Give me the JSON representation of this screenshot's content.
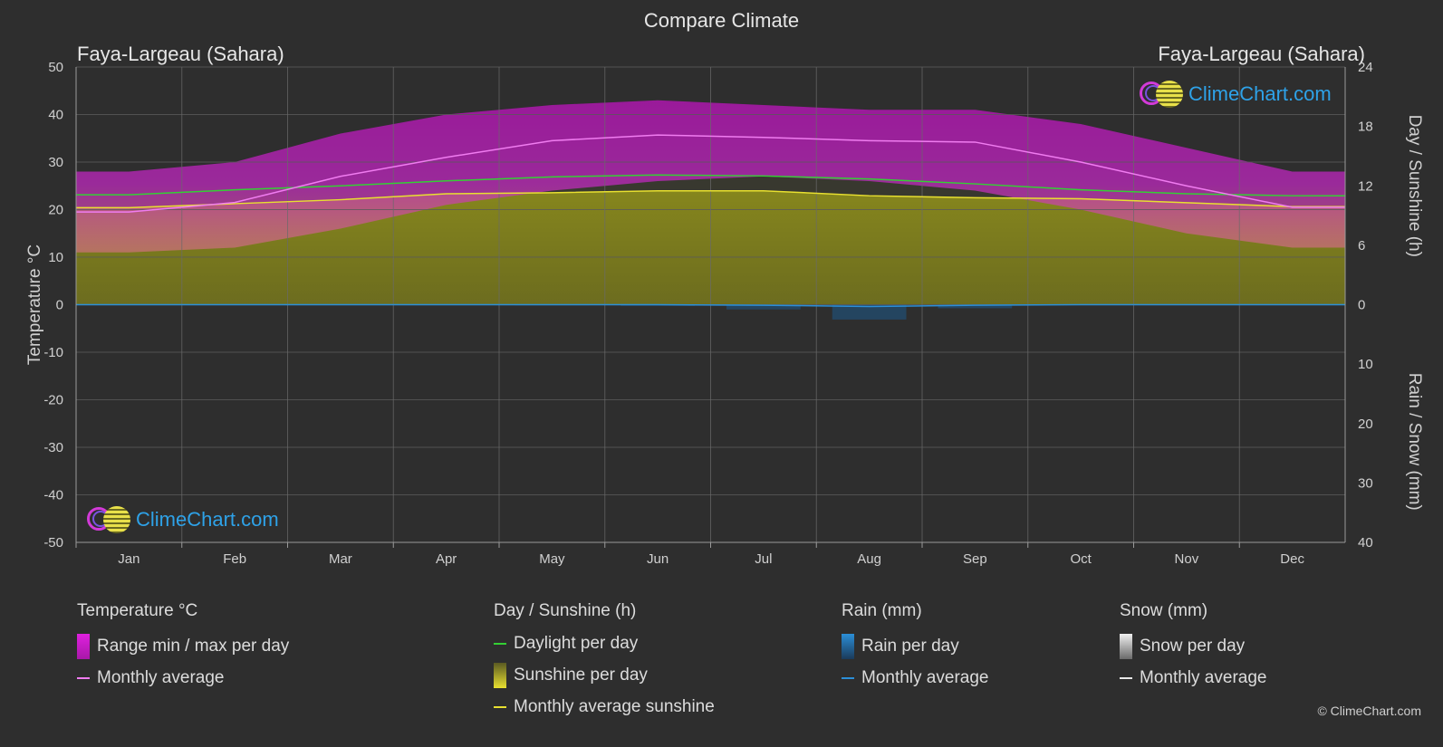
{
  "page": {
    "title": "Compare Climate",
    "location_left": "Faya-Largeau (Sahara)",
    "location_right": "Faya-Largeau (Sahara)",
    "logo_text": "ClimeChart.com",
    "copyright": "© ClimeChart.com"
  },
  "chart_data": {
    "type": "area",
    "categories": [
      "Jan",
      "Feb",
      "Mar",
      "Apr",
      "May",
      "Jun",
      "Jul",
      "Aug",
      "Sep",
      "Oct",
      "Nov",
      "Dec"
    ],
    "y_left": {
      "label": "Temperature °C",
      "range": [
        -50,
        50
      ],
      "ticks": [
        "50",
        "40",
        "30",
        "20",
        "10",
        "0",
        "-10",
        "-20",
        "-30",
        "-40",
        "-50"
      ]
    },
    "y_right_top": {
      "label": "Day / Sunshine (h)",
      "range": [
        0,
        24
      ],
      "ticks": [
        "24",
        "18",
        "12",
        "6",
        "0"
      ]
    },
    "y_right_bottom": {
      "label": "Rain / Snow (mm)",
      "range": [
        0,
        40
      ],
      "ticks": [
        "10",
        "20",
        "30",
        "40"
      ]
    },
    "grid": true,
    "series": [
      {
        "name": "Monthly average",
        "group": "Temperature °C",
        "color": "#f07cf0",
        "values": [
          19.5,
          21.5,
          27.0,
          31.0,
          34.5,
          35.7,
          35.2,
          34.5,
          34.2,
          30.0,
          25.0,
          20.5
        ]
      },
      {
        "name": "Range min / max per day",
        "group": "Temperature °C",
        "color": "#e020e0",
        "min": [
          11,
          12,
          16,
          21,
          24,
          26,
          27,
          26,
          24,
          20,
          15,
          12
        ],
        "max": [
          28,
          30,
          36,
          40,
          42,
          43,
          42,
          41,
          41,
          38,
          33,
          28
        ]
      },
      {
        "name": "Daylight per day",
        "group": "Day / Sunshine (h)",
        "color": "#34d034",
        "values": [
          11.1,
          11.6,
          12.0,
          12.5,
          12.9,
          13.1,
          13.0,
          12.7,
          12.2,
          11.6,
          11.2,
          11.0
        ]
      },
      {
        "name": "Monthly average sunshine",
        "group": "Day / Sunshine (h)",
        "color": "#e8e030",
        "values": [
          9.8,
          10.2,
          10.6,
          11.2,
          11.3,
          11.5,
          11.5,
          11.0,
          10.8,
          10.7,
          10.3,
          9.9
        ]
      },
      {
        "name": "Rain per day",
        "group": "Rain (mm)",
        "color": "#2b8fd8",
        "values": [
          0,
          0,
          0,
          0,
          0.1,
          0.2,
          0.8,
          2.5,
          0.6,
          0,
          0,
          0
        ]
      },
      {
        "name": "Monthly average",
        "group": "Rain (mm)",
        "color": "#2b8fd8",
        "values": [
          0,
          0,
          0,
          0,
          0,
          0,
          0.1,
          0.3,
          0.1,
          0,
          0,
          0
        ]
      }
    ]
  },
  "legend": {
    "temperature": {
      "heading": "Temperature °C",
      "items": [
        "Range min / max per day",
        "Monthly average"
      ]
    },
    "sunshine": {
      "heading": "Day / Sunshine (h)",
      "items": [
        "Daylight per day",
        "Sunshine per day",
        "Monthly average sunshine"
      ]
    },
    "rain": {
      "heading": "Rain (mm)",
      "items": [
        "Rain per day",
        "Monthly average"
      ]
    },
    "snow": {
      "heading": "Snow (mm)",
      "items": [
        "Snow per day",
        "Monthly average"
      ]
    }
  }
}
